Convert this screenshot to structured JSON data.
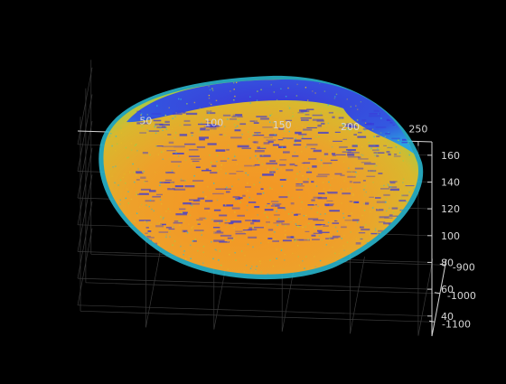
{
  "chart_data": {
    "type": "scatter",
    "dimensions": 3,
    "title": "",
    "xlabel": "",
    "ylabel": "",
    "zlabel": "",
    "x_ticks": [
      "50",
      "100",
      "150",
      "200",
      "250"
    ],
    "y_ticks": [
      "-900",
      "-1000",
      "-1100"
    ],
    "z_ticks": [
      "40",
      "60",
      "80",
      "100",
      "120",
      "140",
      "160"
    ],
    "xlim": [
      0,
      260
    ],
    "ylim": [
      -1150,
      -880
    ],
    "zlim": [
      25,
      170
    ],
    "grid": true,
    "background": "#000000",
    "axis_color": "#d6d6d6",
    "grid_color": "#3a3a3a",
    "colormap": "parula",
    "colormap_stops": [
      "#3a38d8",
      "#1f7fe8",
      "#2cc0d8",
      "#9ad04a",
      "#e3b829",
      "#f59322"
    ],
    "description_of_cloud": {
      "shape": "ellipsoid",
      "color_by": "z"
    }
  }
}
